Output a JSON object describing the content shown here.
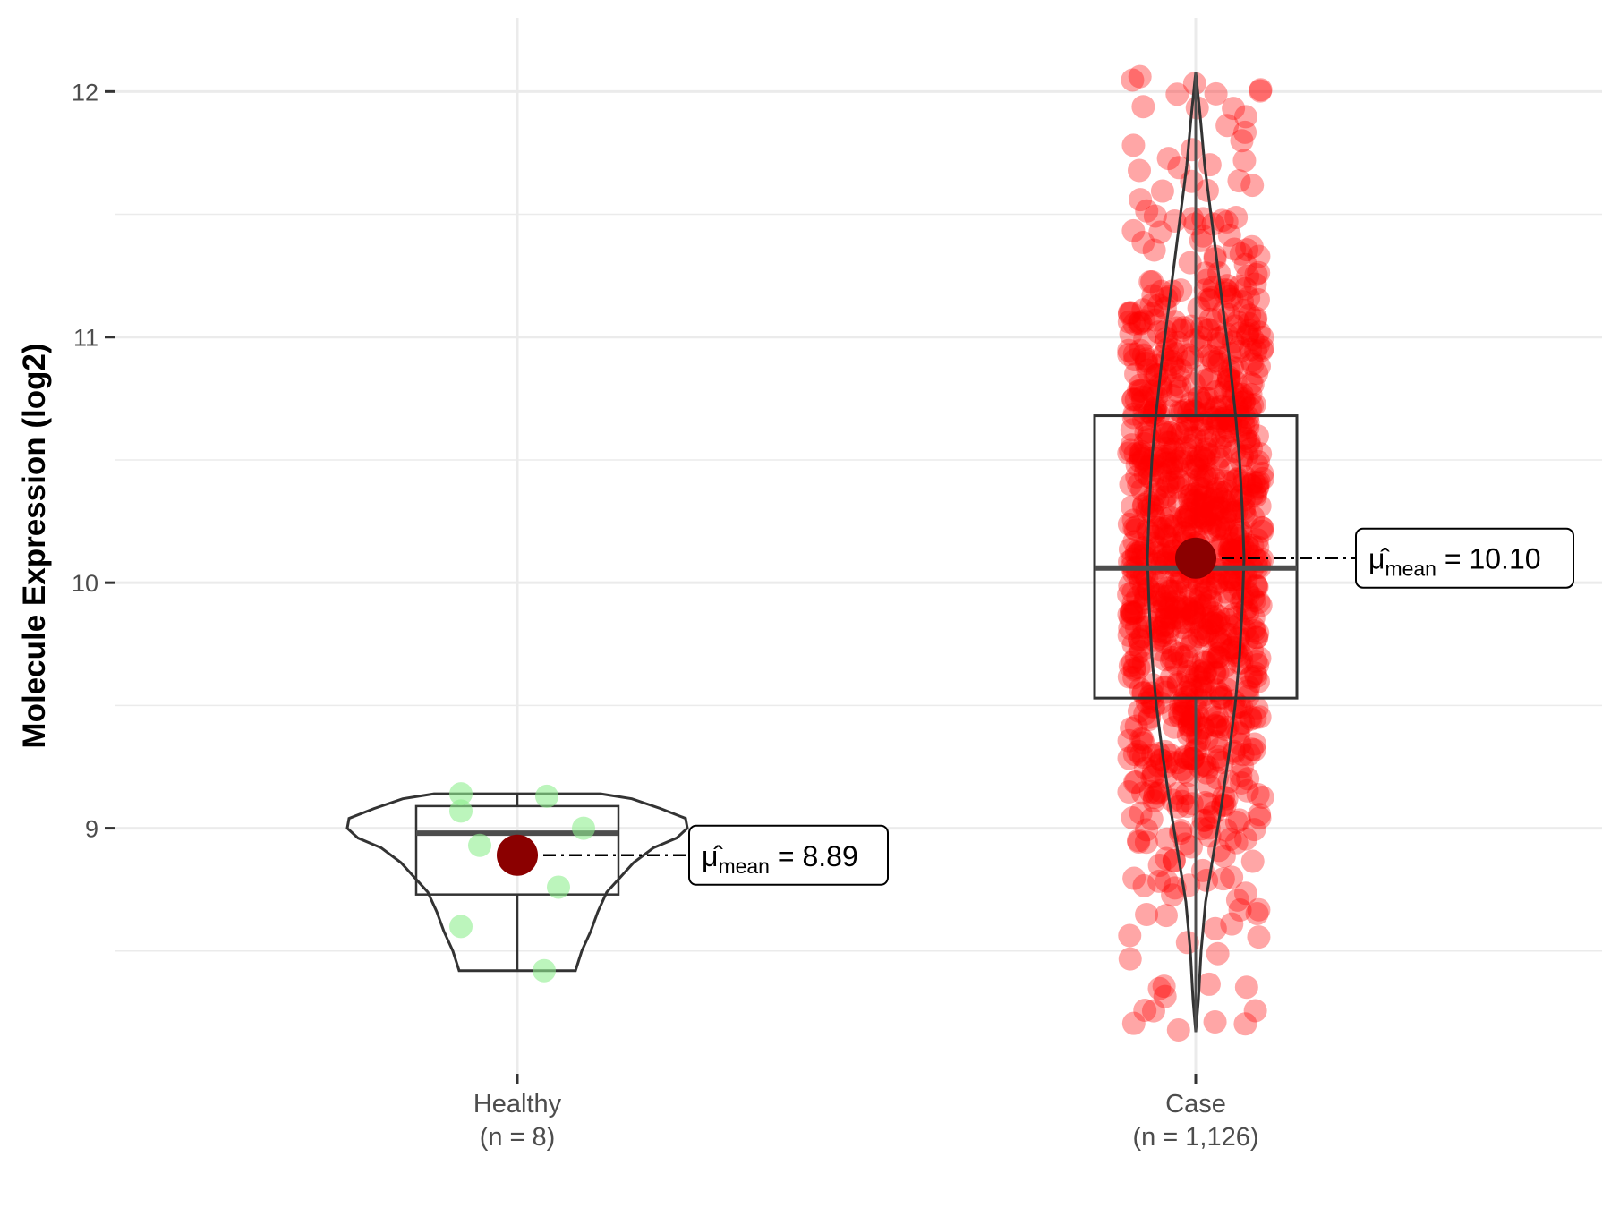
{
  "chart_data": {
    "type": "violin-box-jitter",
    "title": "",
    "ylabel": "Molecule Expression (log2)",
    "xlabel": "",
    "ylim": [
      8.0,
      12.3
    ],
    "yticks": [
      9,
      10,
      11,
      12
    ],
    "ytick_labels": [
      "9",
      "10",
      "11",
      "12"
    ],
    "grid": true,
    "groups": [
      {
        "name": "Healthy",
        "n_label": "(n = 8)",
        "color": "#90EE90",
        "points": [
          9.14,
          9.07,
          9.13,
          9.0,
          8.93,
          8.76,
          8.6,
          8.42
        ],
        "box": {
          "q1": 8.73,
          "median": 8.98,
          "q3": 9.09,
          "whisker_low": 8.42,
          "whisker_high": 9.14
        },
        "mean": 8.89,
        "mean_label": "8.89"
      },
      {
        "name": "Case",
        "n_label": "(n = 1,126)",
        "color": "#FF0000",
        "points_summary": {
          "count": 1126,
          "min": 8.17,
          "max": 12.08
        },
        "box": {
          "q1": 9.53,
          "median": 10.06,
          "q3": 10.68,
          "whisker_low": 8.17,
          "whisker_high": 12.08
        },
        "mean": 10.1,
        "mean_label": "10.10"
      }
    ],
    "mean_marker_color": "#8B0000",
    "mean_annotation_symbol": "μ̂",
    "mean_annotation_subscript": "mean"
  }
}
